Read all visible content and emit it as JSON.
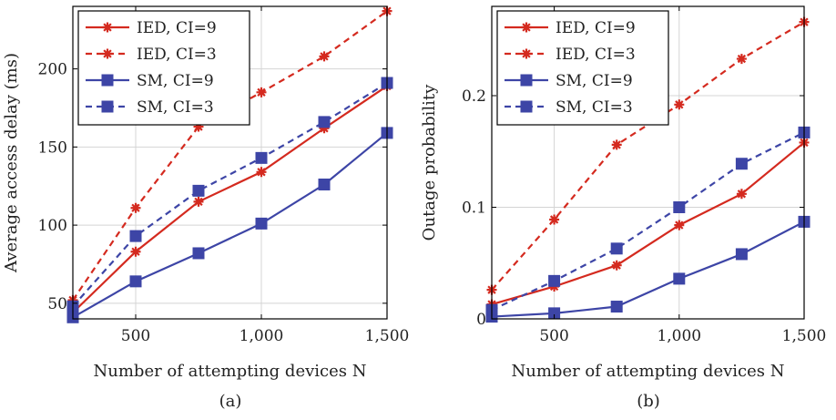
{
  "colors": {
    "ied": "#d42a1f",
    "sm": "#3d45a6",
    "grid": "#d4d4d4",
    "axis": "#000000"
  },
  "legend": {
    "entries": [
      {
        "label": "IED, CI=9",
        "color": "#d42a1f",
        "dashed": false,
        "marker": "star"
      },
      {
        "label": "IED, CI=3",
        "color": "#d42a1f",
        "dashed": true,
        "marker": "star"
      },
      {
        "label": "SM, CI=9",
        "color": "#3d45a6",
        "dashed": false,
        "marker": "square"
      },
      {
        "label": "SM, CI=3",
        "color": "#3d45a6",
        "dashed": true,
        "marker": "square"
      }
    ],
    "placement": "top-left"
  },
  "chart_data": [
    {
      "type": "line",
      "caption": "(a)",
      "xlabel": "Number of attempting devices N",
      "ylabel": "Average access delay (ms)",
      "xlim": [
        250,
        1500
      ],
      "ylim": [
        40,
        240
      ],
      "xticks": [
        500,
        1000,
        1500
      ],
      "xtick_labels": [
        "500",
        "1,000",
        "1,500"
      ],
      "yticks": [
        50,
        100,
        150,
        200
      ],
      "ytick_labels": [
        "50",
        "100",
        "150",
        "200"
      ],
      "grid": true,
      "x": [
        250,
        500,
        750,
        1000,
        1250,
        1500
      ],
      "series": [
        {
          "name": "IED, CI=9",
          "color": "#d42a1f",
          "dashed": false,
          "marker": "star",
          "values": [
            44,
            83,
            115,
            134,
            162,
            189
          ]
        },
        {
          "name": "IED, CI=3",
          "color": "#d42a1f",
          "dashed": true,
          "marker": "star",
          "values": [
            52,
            111,
            163,
            185,
            208,
            237
          ]
        },
        {
          "name": "SM, CI=9",
          "color": "#3d45a6",
          "dashed": false,
          "marker": "square",
          "values": [
            41,
            64,
            82,
            101,
            126,
            159
          ]
        },
        {
          "name": "SM, CI=3",
          "color": "#3d45a6",
          "dashed": true,
          "marker": "square",
          "values": [
            48,
            93,
            122,
            143,
            166,
            191
          ]
        }
      ]
    },
    {
      "type": "line",
      "caption": "(b)",
      "xlabel": "Number of attempting devices N",
      "ylabel": "Outage probability",
      "xlim": [
        250,
        1500
      ],
      "ylim": [
        0,
        0.28
      ],
      "xticks": [
        500,
        1000,
        1500
      ],
      "xtick_labels": [
        "500",
        "1,000",
        "1,500"
      ],
      "yticks": [
        0,
        0.1,
        0.2
      ],
      "ytick_labels": [
        "0",
        "0.1",
        "0.2"
      ],
      "grid": true,
      "x": [
        250,
        500,
        750,
        1000,
        1250,
        1500
      ],
      "series": [
        {
          "name": "IED, CI=9",
          "color": "#d42a1f",
          "dashed": false,
          "marker": "star",
          "values": [
            0.013,
            0.029,
            0.048,
            0.084,
            0.112,
            0.158
          ]
        },
        {
          "name": "IED, CI=3",
          "color": "#d42a1f",
          "dashed": true,
          "marker": "star",
          "values": [
            0.026,
            0.089,
            0.156,
            0.192,
            0.233,
            0.266
          ]
        },
        {
          "name": "SM, CI=9",
          "color": "#3d45a6",
          "dashed": false,
          "marker": "square",
          "values": [
            0.002,
            0.005,
            0.011,
            0.036,
            0.058,
            0.087
          ]
        },
        {
          "name": "SM, CI=3",
          "color": "#3d45a6",
          "dashed": true,
          "marker": "square",
          "values": [
            0.008,
            0.034,
            0.063,
            0.1,
            0.139,
            0.167
          ]
        }
      ]
    }
  ]
}
